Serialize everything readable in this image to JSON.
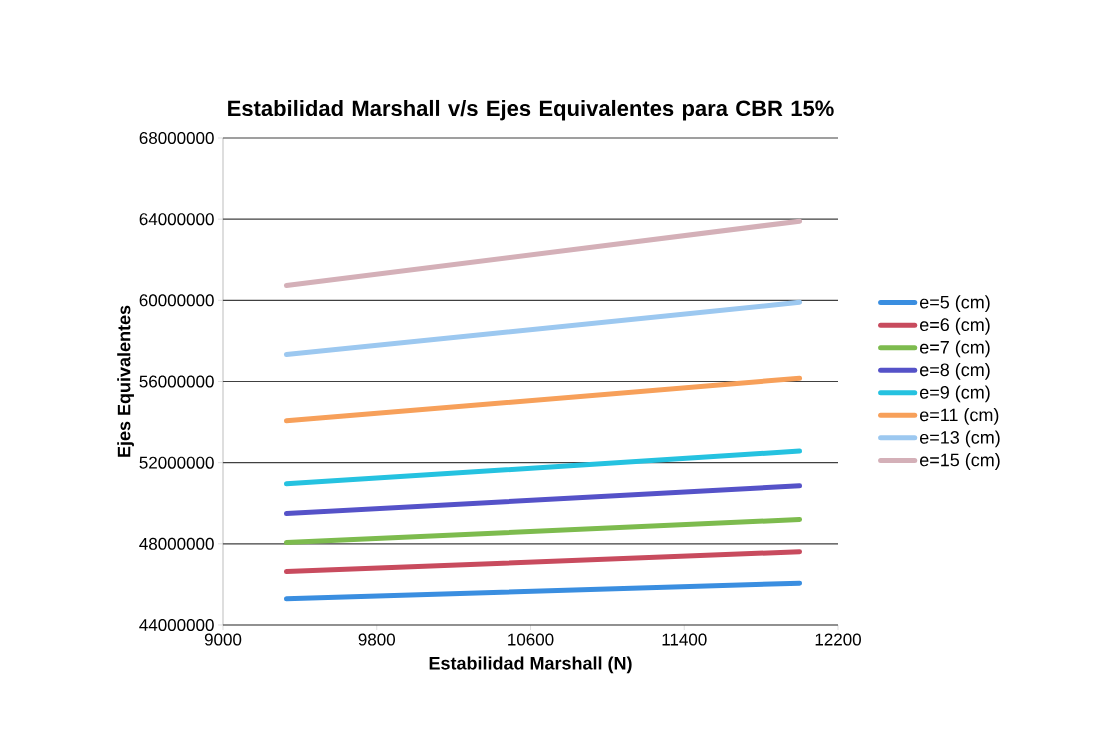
{
  "chart_data": {
    "type": "line",
    "title": "Estabilidad Marshall v/s Ejes Equivalentes para CBR 15%",
    "xlabel": "Estabilidad Marshall (N)",
    "ylabel": "Ejes Equivalentes",
    "x": [
      9330,
      12000
    ],
    "series": [
      {
        "name": "e=5 (cm)",
        "color": "#3a8ee0",
        "values": [
          45290000,
          46060000
        ]
      },
      {
        "name": "e=6 (cm)",
        "color": "#c84b5e",
        "values": [
          46630000,
          47610000
        ]
      },
      {
        "name": "e=7 (cm)",
        "color": "#7dbb4e",
        "values": [
          48060000,
          49200000
        ]
      },
      {
        "name": "e=8 (cm)",
        "color": "#5552c8",
        "values": [
          49490000,
          50860000
        ]
      },
      {
        "name": "e=9 (cm)",
        "color": "#25c2e0",
        "values": [
          50960000,
          52570000
        ]
      },
      {
        "name": "e=11 (cm)",
        "color": "#f7a05a",
        "values": [
          54060000,
          56160000
        ]
      },
      {
        "name": "e=13 (cm)",
        "color": "#9cc8f0",
        "values": [
          57330000,
          59900000
        ]
      },
      {
        "name": "e=15 (cm)",
        "color": "#d4b0b8",
        "values": [
          60730000,
          63900000
        ]
      }
    ],
    "xlim": [
      9000,
      12200
    ],
    "xticks": [
      9000,
      9800,
      10600,
      11400,
      12200
    ],
    "ylim": [
      44000000,
      68000000
    ],
    "yticks": [
      44000000,
      48000000,
      52000000,
      56000000,
      60000000,
      64000000,
      68000000
    ],
    "grid": "y",
    "legend": "right",
    "marker": "none",
    "line_style": "solid"
  }
}
